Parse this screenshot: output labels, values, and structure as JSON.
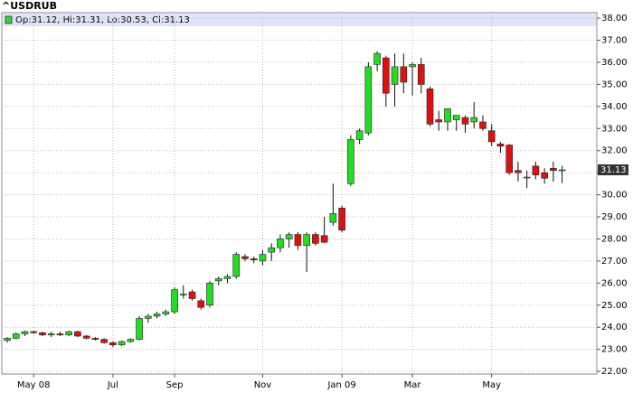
{
  "chart_data": {
    "type": "candlestick",
    "title": "^USDRUB",
    "legend_text": "Op:31.12, Hi:31.31, Lo:30.53, Cl:31.13",
    "last_value": 31.13,
    "categories": [
      null,
      null,
      null,
      "May 08",
      null,
      null,
      null,
      null,
      null,
      null,
      null,
      null,
      "Jul",
      null,
      null,
      null,
      null,
      null,
      null,
      "Sep",
      null,
      null,
      null,
      null,
      null,
      null,
      null,
      null,
      null,
      "Nov",
      null,
      null,
      null,
      null,
      null,
      null,
      null,
      null,
      "Jan 09",
      null,
      null,
      null,
      null,
      null,
      null,
      null,
      "Mar",
      null,
      null,
      null,
      null,
      null,
      null,
      null,
      null,
      "May",
      null,
      null,
      null,
      null,
      null,
      null,
      null,
      null
    ],
    "open": [
      23.4,
      23.5,
      23.7,
      23.8,
      23.75,
      23.65,
      23.7,
      23.65,
      23.8,
      23.6,
      23.5,
      23.45,
      23.3,
      23.2,
      23.35,
      23.45,
      24.4,
      24.5,
      24.6,
      24.7,
      25.5,
      25.6,
      25.2,
      25.0,
      26.1,
      26.2,
      26.3,
      27.2,
      27.1,
      27.0,
      27.4,
      27.6,
      28.0,
      28.2,
      27.7,
      28.2,
      28.15,
      28.75,
      29.4,
      30.5,
      32.5,
      32.8,
      35.9,
      36.2,
      35.0,
      35.8,
      35.8,
      35.9,
      34.8,
      33.4,
      33.3,
      33.4,
      33.5,
      33.3,
      33.3,
      32.9,
      32.3,
      32.25,
      31.1,
      30.8,
      31.3,
      31.0,
      31.2,
      31.12
    ],
    "high": [
      23.55,
      23.75,
      23.85,
      23.85,
      23.8,
      23.8,
      23.8,
      23.85,
      23.85,
      23.65,
      23.55,
      23.5,
      23.35,
      23.4,
      23.5,
      24.5,
      24.6,
      24.7,
      24.8,
      25.8,
      25.9,
      25.7,
      25.3,
      26.1,
      26.3,
      26.4,
      27.4,
      27.3,
      27.2,
      27.5,
      27.8,
      28.2,
      28.3,
      28.3,
      28.3,
      28.3,
      29.0,
      30.5,
      29.5,
      32.7,
      33.0,
      36.0,
      36.5,
      36.3,
      36.4,
      36.4,
      36.0,
      36.2,
      34.9,
      33.8,
      33.9,
      33.6,
      33.6,
      34.2,
      33.6,
      33.2,
      32.4,
      32.3,
      31.5,
      31.1,
      31.5,
      31.2,
      31.5,
      31.31
    ],
    "low": [
      23.3,
      23.45,
      23.6,
      23.7,
      23.6,
      23.55,
      23.6,
      23.6,
      23.55,
      23.45,
      23.4,
      23.25,
      23.1,
      23.15,
      23.3,
      23.4,
      24.2,
      24.4,
      24.5,
      24.6,
      25.3,
      25.2,
      24.8,
      24.9,
      25.9,
      26.0,
      26.2,
      27.0,
      26.9,
      26.8,
      27.0,
      27.4,
      27.6,
      27.5,
      26.5,
      27.7,
      27.8,
      28.6,
      28.3,
      30.4,
      32.3,
      32.7,
      35.6,
      34.0,
      34.0,
      34.6,
      34.5,
      34.6,
      33.1,
      32.9,
      32.9,
      32.9,
      32.8,
      33.0,
      32.9,
      32.2,
      31.9,
      30.9,
      30.6,
      30.3,
      30.7,
      30.5,
      30.6,
      30.53
    ],
    "close": [
      23.5,
      23.7,
      23.8,
      23.75,
      23.65,
      23.7,
      23.65,
      23.8,
      23.6,
      23.5,
      23.45,
      23.3,
      23.2,
      23.35,
      23.45,
      24.4,
      24.5,
      24.6,
      24.7,
      25.7,
      25.5,
      25.3,
      24.9,
      26.0,
      26.2,
      26.3,
      27.3,
      27.1,
      27.05,
      27.3,
      27.6,
      28.0,
      28.2,
      27.7,
      28.2,
      27.8,
      27.85,
      29.15,
      28.4,
      32.5,
      32.9,
      35.8,
      36.4,
      34.6,
      35.8,
      35.1,
      35.9,
      35.0,
      33.2,
      33.3,
      33.9,
      33.6,
      33.2,
      33.5,
      33.0,
      32.4,
      32.2,
      31.0,
      31.0,
      30.8,
      30.9,
      30.75,
      31.1,
      31.13
    ],
    "up_color": "#22dd22",
    "down_color": "#dd1111",
    "ylim": [
      21.88,
      38.25
    ],
    "yticks": [
      {
        "value": 22,
        "label": "22.00"
      },
      {
        "value": 23,
        "label": "23.00"
      },
      {
        "value": 24,
        "label": "24.00"
      },
      {
        "value": 25,
        "label": "25.00"
      },
      {
        "value": 26,
        "label": "26.00"
      },
      {
        "value": 27,
        "label": "27.00"
      },
      {
        "value": 28,
        "label": "28.00"
      },
      {
        "value": 29,
        "label": "29.00"
      },
      {
        "value": 30,
        "label": "30.00"
      },
      {
        "value": 31,
        "label": "31.00"
      },
      {
        "value": 32,
        "label": "32.00"
      },
      {
        "value": 33,
        "label": "33.00"
      },
      {
        "value": 34,
        "label": "34.00"
      },
      {
        "value": 35,
        "label": "35.00"
      },
      {
        "value": 36,
        "label": "36.00"
      },
      {
        "value": 37,
        "label": "37.00"
      },
      {
        "value": 38,
        "label": "38.00"
      }
    ],
    "grid": true
  }
}
